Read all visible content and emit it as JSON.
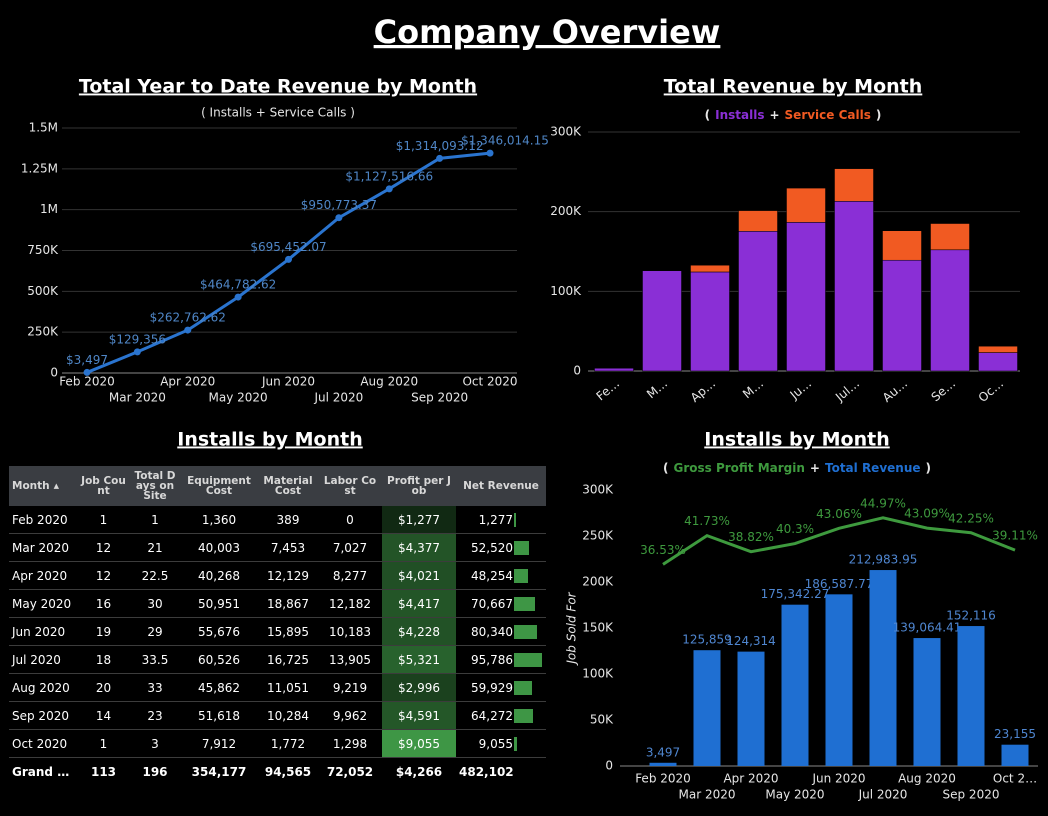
{
  "title": "Company Overview",
  "chart_data": [
    {
      "type": "line",
      "title": "Total Year to Date Revenue by Month",
      "subtitle": "( Installs + Service Calls )",
      "categories": [
        "Feb 2020",
        "Mar 2020",
        "Apr 2020",
        "May 2020",
        "Jun 2020",
        "Jul 2020",
        "Aug 2020",
        "Sep 2020",
        "Oct 2020"
      ],
      "values": [
        3497,
        129356,
        262762.62,
        464782.62,
        695452.07,
        950773.37,
        1127516.66,
        1314093.12,
        1346014.15
      ],
      "value_labels": [
        "$3,497",
        "$129,356",
        "$262,762.62",
        "$464,782.62",
        "$695,452.07",
        "$950,773.37",
        "$1,127,516.66",
        "$1,314,093.12",
        "$1,346,014.15"
      ],
      "color": "#2a74cf",
      "ylim": [
        0,
        1500000
      ],
      "yticks": [
        0,
        {
          "value": 250000,
          "label": "250K"
        },
        {
          "value": 500000,
          "label": "500K"
        },
        {
          "value": 750000,
          "label": "750K"
        },
        {
          "value": 1000000,
          "label": "1M"
        },
        {
          "value": 1250000,
          "label": "1.25M"
        },
        {
          "value": 1500000,
          "label": "1.5M"
        }
      ],
      "grid": true
    },
    {
      "type": "bar",
      "stacked": true,
      "title": "Total Revenue by Month",
      "subtitle_separators": [
        "(",
        "+",
        ")"
      ],
      "categories": [
        "Fe…",
        "M…",
        "Ap…",
        "M…",
        "Ju…",
        "Jul…",
        "Au…",
        "Se…",
        "Oc…"
      ],
      "series": [
        {
          "name": "Installs",
          "color": "#8a2fd6",
          "values": [
            3497,
            125859,
            124314,
            175342,
            186588,
            212984,
            139064,
            152116,
            23155
          ]
        },
        {
          "name": "Service Calls",
          "color": "#f15a22",
          "values": [
            0,
            0,
            8500,
            26000,
            43000,
            41000,
            37000,
            33000,
            8000
          ]
        }
      ],
      "ylim": [
        0,
        300000
      ],
      "yticks": [
        0,
        {
          "value": 100000,
          "label": "100K"
        },
        {
          "value": 200000,
          "label": "200K"
        },
        {
          "value": 300000,
          "label": "300K"
        }
      ],
      "grid": true
    },
    {
      "type": "bar",
      "title": "Installs by Month",
      "subtitle_separators": [
        "(",
        "+",
        ")"
      ],
      "ylabel": "Job Sold For",
      "categories": [
        "Feb 2020",
        "Mar 2020",
        "Apr 2020",
        "May 2020",
        "Jun 2020",
        "Jul 2020",
        "Aug 2020",
        "Sep 2020",
        "Oct 2…"
      ],
      "series": [
        {
          "name": "Gross Profit Margin",
          "type": "line",
          "axis": "y2",
          "color": "#3e9a3e",
          "values": [
            36.53,
            41.73,
            38.82,
            40.3,
            43.06,
            44.97,
            43.09,
            42.25,
            39.11
          ],
          "value_labels": [
            "36.53%",
            "41.73%",
            "38.82%",
            "40.3%",
            "43.06%",
            "44.97%",
            "43.09%",
            "42.25%",
            "39.11%"
          ]
        },
        {
          "name": "Total Revenue",
          "type": "bar",
          "color": "#1f6fd2",
          "values": [
            3497,
            125859,
            124314,
            175342.27,
            186587.77,
            212983.95,
            139064.41,
            152116,
            23155
          ],
          "value_labels": [
            "3,497",
            "125,859",
            "124,314",
            "175,342.27",
            "186,587.77",
            "212,983.95",
            "139,064.41",
            "152,116",
            "23,155"
          ]
        }
      ],
      "ylim": [
        0,
        300000
      ],
      "yticks": [
        0,
        {
          "value": 50000,
          "label": "50K"
        },
        {
          "value": 100000,
          "label": "100K"
        },
        {
          "value": 150000,
          "label": "150K"
        },
        {
          "value": 200000,
          "label": "200K"
        },
        {
          "value": 250000,
          "label": "250K"
        },
        {
          "value": 300000,
          "label": "300K"
        }
      ],
      "y2lim": [
        0,
        50
      ],
      "grid": false
    }
  ],
  "table": {
    "title": "Installs by Month",
    "sort_indicator": "▲",
    "columns": [
      "Month",
      "Job Count",
      "Total Days on Site",
      "Equipment Cost",
      "Material Cost",
      "Labor Cost",
      "Profit per Job",
      "Net Revenue"
    ],
    "rows": [
      [
        "Feb 2020",
        "1",
        "1",
        "1,360",
        "389",
        "0",
        "$1,277",
        "1,277"
      ],
      [
        "Mar 2020",
        "12",
        "21",
        "40,003",
        "7,453",
        "7,027",
        "$4,377",
        "52,520"
      ],
      [
        "Apr 2020",
        "12",
        "22.5",
        "40,268",
        "12,129",
        "8,277",
        "$4,021",
        "48,254"
      ],
      [
        "May 2020",
        "16",
        "30",
        "50,951",
        "18,867",
        "12,182",
        "$4,417",
        "70,667"
      ],
      [
        "Jun 2020",
        "19",
        "29",
        "55,676",
        "15,895",
        "10,183",
        "$4,228",
        "80,340"
      ],
      [
        "Jul 2020",
        "18",
        "33.5",
        "60,526",
        "16,725",
        "13,905",
        "$5,321",
        "95,786"
      ],
      [
        "Aug 2020",
        "20",
        "33",
        "45,862",
        "11,051",
        "9,219",
        "$2,996",
        "59,929"
      ],
      [
        "Sep 2020",
        "14",
        "23",
        "51,618",
        "10,284",
        "9,962",
        "$4,591",
        "64,272"
      ],
      [
        "Oct 2020",
        "1",
        "3",
        "7,912",
        "1,772",
        "1,298",
        "$9,055",
        "9,055"
      ]
    ],
    "total": [
      "Grand total",
      "113",
      "196",
      "354,177",
      "94,565",
      "72,052",
      "$4,266",
      "482,102"
    ]
  }
}
